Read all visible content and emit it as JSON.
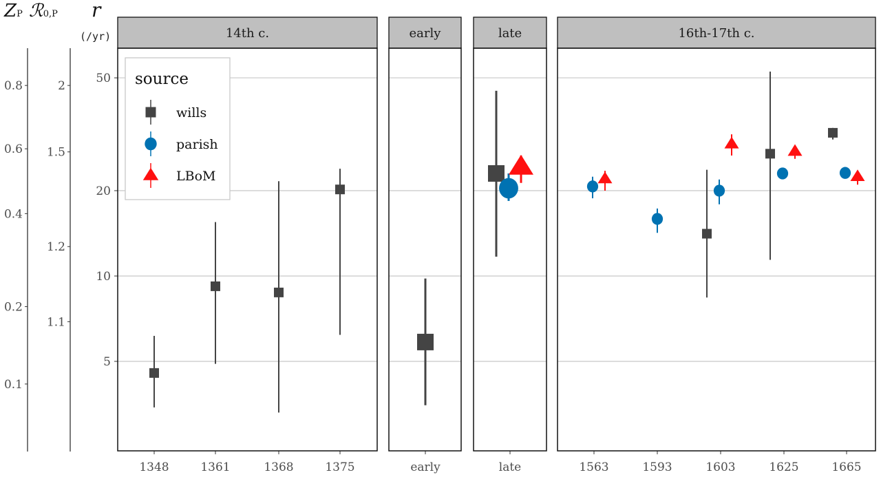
{
  "chart_data": {
    "type": "scatter",
    "y_scale": "log",
    "ylim": [
      2.9,
      70
    ],
    "grid": true,
    "y_axis": {
      "label": "r",
      "unit": "(/yr)",
      "ticks": [
        5,
        10,
        20,
        50
      ]
    },
    "secondary_axes": [
      {
        "label": "Z_P",
        "label_main": "Z",
        "label_sub": "P",
        "ticks": [
          {
            "label": "0.8",
            "r": 47
          },
          {
            "label": "0.6",
            "r": 28.1
          },
          {
            "label": "0.4",
            "r": 16.6
          },
          {
            "label": "0.2",
            "r": 7.8
          },
          {
            "label": "0.1",
            "r": 4.16
          }
        ]
      },
      {
        "label": "R_0,P",
        "label_main": "ℛ",
        "label_sub": "0,P",
        "ticks": [
          {
            "label": "2",
            "r": 47
          },
          {
            "label": "1.5",
            "r": 27.4
          },
          {
            "label": "1.2",
            "r": 12.7
          },
          {
            "label": "1.1",
            "r": 6.9
          }
        ]
      }
    ],
    "legend": {
      "title": "source",
      "position": "top-left",
      "entries": [
        {
          "name": "wills",
          "color": "#444444",
          "shape": "square"
        },
        {
          "name": "parish",
          "color": "#0072B2",
          "shape": "circle"
        },
        {
          "name": "LBoM",
          "color": "#FF1010",
          "shape": "triangle"
        }
      ]
    },
    "panels": [
      {
        "title": "14th c.",
        "categories": [
          "1348",
          "1361",
          "1368",
          "1375"
        ],
        "points": [
          {
            "cat": "1348",
            "source": "wills",
            "value": 4.55,
            "lo": 3.44,
            "hi": 6.15
          },
          {
            "cat": "1361",
            "source": "wills",
            "value": 9.2,
            "lo": 4.9,
            "hi": 15.5
          },
          {
            "cat": "1368",
            "source": "wills",
            "value": 8.75,
            "lo": 3.3,
            "hi": 21.6
          },
          {
            "cat": "1375",
            "source": "wills",
            "value": 20.2,
            "lo": 6.2,
            "hi": 23.9
          }
        ]
      },
      {
        "title": "early",
        "categories": [
          "early"
        ],
        "points": [
          {
            "cat": "early",
            "source": "wills",
            "value": 5.85,
            "lo": 3.5,
            "hi": 9.8
          }
        ]
      },
      {
        "title": "late",
        "categories": [
          "late"
        ],
        "points": [
          {
            "cat": "late",
            "source": "wills",
            "value": 23,
            "lo": 11.7,
            "hi": 45
          },
          {
            "cat": "late",
            "source": "parish",
            "value": 20.4,
            "lo": 18.4,
            "hi": 23
          },
          {
            "cat": "late",
            "source": "LBoM",
            "value": 24.2,
            "lo": 21.3,
            "hi": 26.6
          }
        ]
      },
      {
        "title": "16th-17th c.",
        "categories": [
          "1563",
          "1593",
          "1603",
          "1625",
          "1665"
        ],
        "points": [
          {
            "cat": "1563",
            "source": "parish",
            "value": 20.7,
            "lo": 18.8,
            "hi": 22.4
          },
          {
            "cat": "1563",
            "source": "LBoM",
            "value": 22,
            "lo": 20,
            "hi": 23.5
          },
          {
            "cat": "1593",
            "source": "parish",
            "value": 15.9,
            "lo": 14.2,
            "hi": 17.3
          },
          {
            "cat": "1603",
            "source": "wills",
            "value": 14.1,
            "lo": 8.4,
            "hi": 23.7
          },
          {
            "cat": "1603",
            "source": "parish",
            "value": 20,
            "lo": 17.9,
            "hi": 21.9
          },
          {
            "cat": "1603",
            "source": "LBoM",
            "value": 29.2,
            "lo": 26.6,
            "hi": 31.6
          },
          {
            "cat": "1625",
            "source": "wills",
            "value": 27,
            "lo": 11.4,
            "hi": 52.6
          },
          {
            "cat": "1625",
            "source": "parish",
            "value": 23,
            "lo": 22.6,
            "hi": 23.4
          },
          {
            "cat": "1625",
            "source": "LBoM",
            "value": 27.5,
            "lo": 25.9,
            "hi": 28.7
          },
          {
            "cat": "1665",
            "source": "wills",
            "value": 32,
            "lo": 30.3,
            "hi": 33.3
          },
          {
            "cat": "1665",
            "source": "parish",
            "value": 23.1,
            "lo": 22.7,
            "hi": 23.5
          },
          {
            "cat": "1665",
            "source": "LBoM",
            "value": 22.4,
            "lo": 21,
            "hi": 23.4
          }
        ]
      }
    ]
  }
}
